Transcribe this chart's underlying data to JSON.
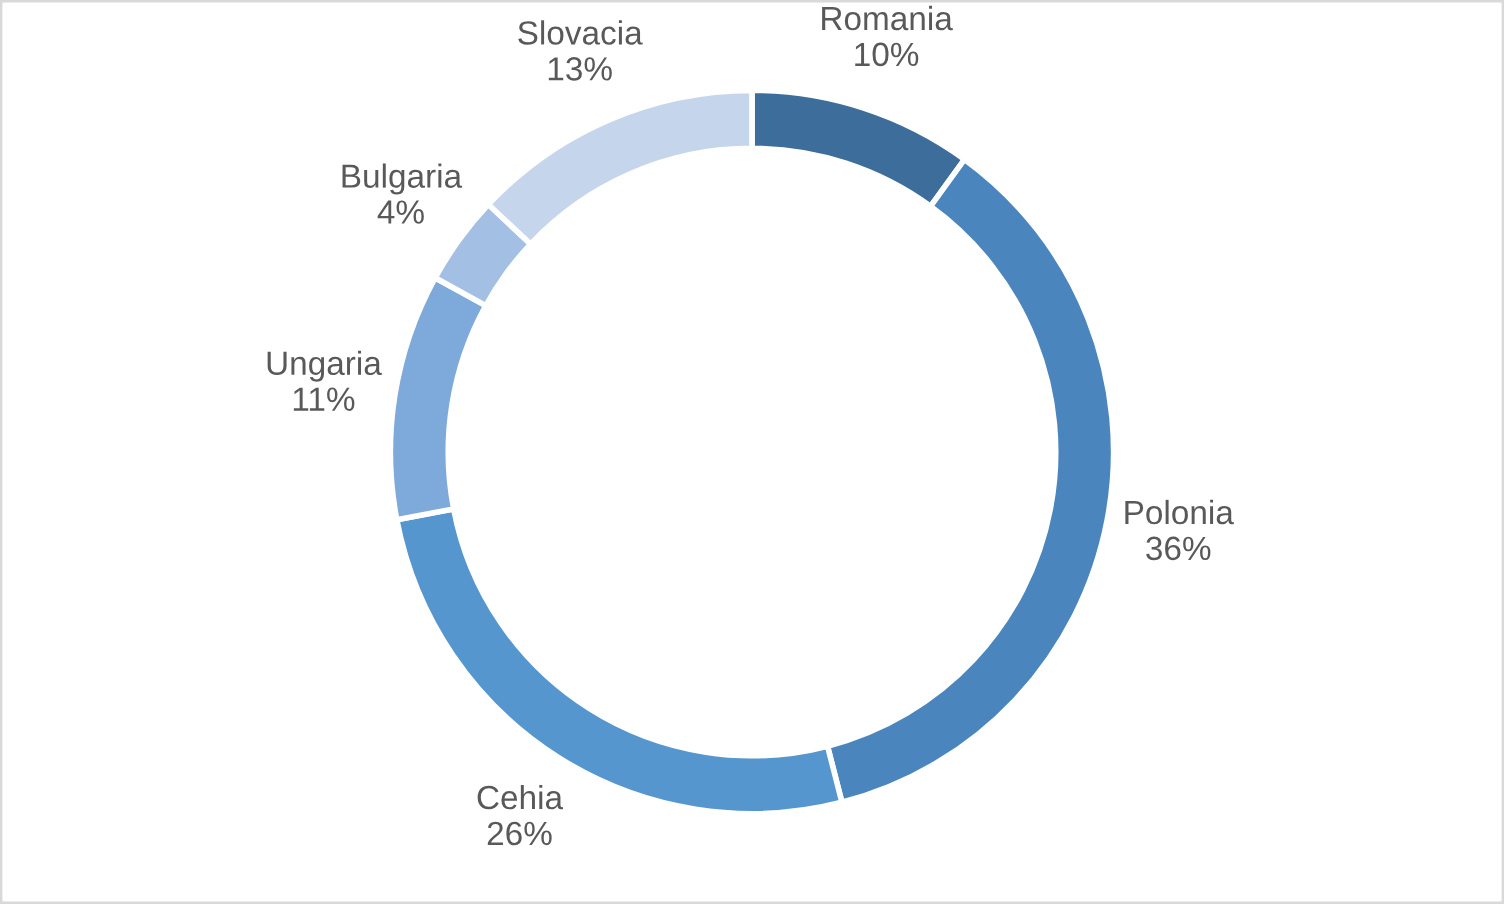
{
  "chart_data": {
    "type": "donut",
    "categories": [
      "Romania",
      "Polonia",
      "Cehia",
      "Ungaria",
      "Bulgaria",
      "Slovacia"
    ],
    "values": [
      10,
      36,
      26,
      11,
      4,
      13
    ],
    "value_labels": [
      "10%",
      "36%",
      "26%",
      "11%",
      "4%",
      "13%"
    ],
    "colors": [
      "#3d6d9a",
      "#4a86bd",
      "#5596cf",
      "#7ea9db",
      "#a3bfe3",
      "#c5d5eb"
    ],
    "legend": false
  }
}
